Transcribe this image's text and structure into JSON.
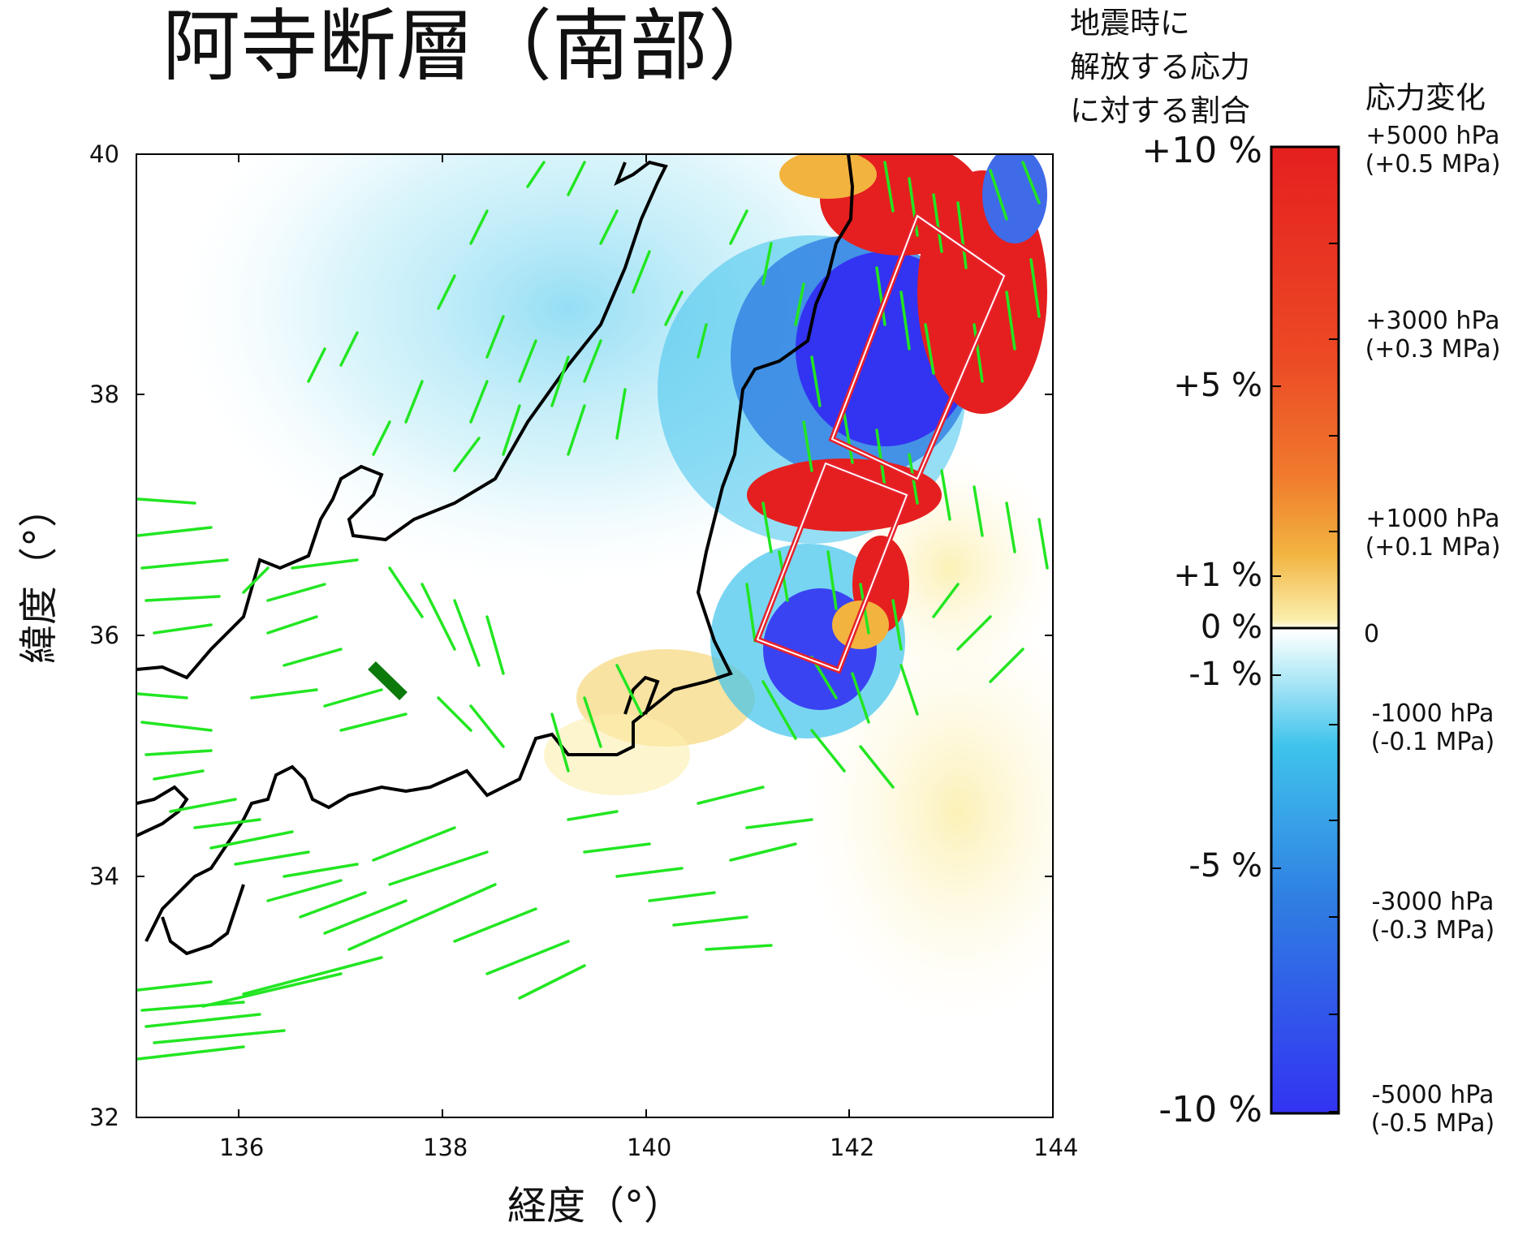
{
  "title": "阿寺断層（南部）",
  "map": {
    "x_label": "経度（°）",
    "y_label": "緯度（°）",
    "x_ticks": [
      "136",
      "138",
      "140",
      "142",
      "144"
    ],
    "y_ticks": [
      "40",
      "38",
      "36",
      "34",
      "32"
    ],
    "x_range": [
      135,
      144
    ],
    "y_range": [
      32,
      40
    ],
    "colors": {
      "coastline": "#000000",
      "active_faults": "#22e622",
      "receiver_fault": "#0b7a0b",
      "source_fault_outline": "#e8212b"
    }
  },
  "colorbar": {
    "left_header": "地震時に\n解放する応力\nに対する割合",
    "right_header": "応力変化",
    "percent_labels": [
      "+10 %",
      "+5 %",
      "+1 %",
      "0 %",
      "-1 %",
      "-5 %",
      "-10 %"
    ],
    "stress_labels": [
      "+5000 hPa\n(+0.5 MPa)",
      "+3000 hPa\n(+0.3 MPa)",
      "+1000 hPa\n(+0.1 MPa)",
      "0",
      "-1000 hPa\n(-0.1 MPa)",
      "-3000 hPa\n(-0.3 MPa)",
      "-5000 hPa\n(-0.5 MPa)"
    ],
    "scale_colors": [
      "#e51f1f",
      "#ee6a2b",
      "#f2b33f",
      "#fbefae",
      "#ffffff",
      "#dff7fb",
      "#3fc3ec",
      "#2f7ee2",
      "#3333f2"
    ]
  }
}
